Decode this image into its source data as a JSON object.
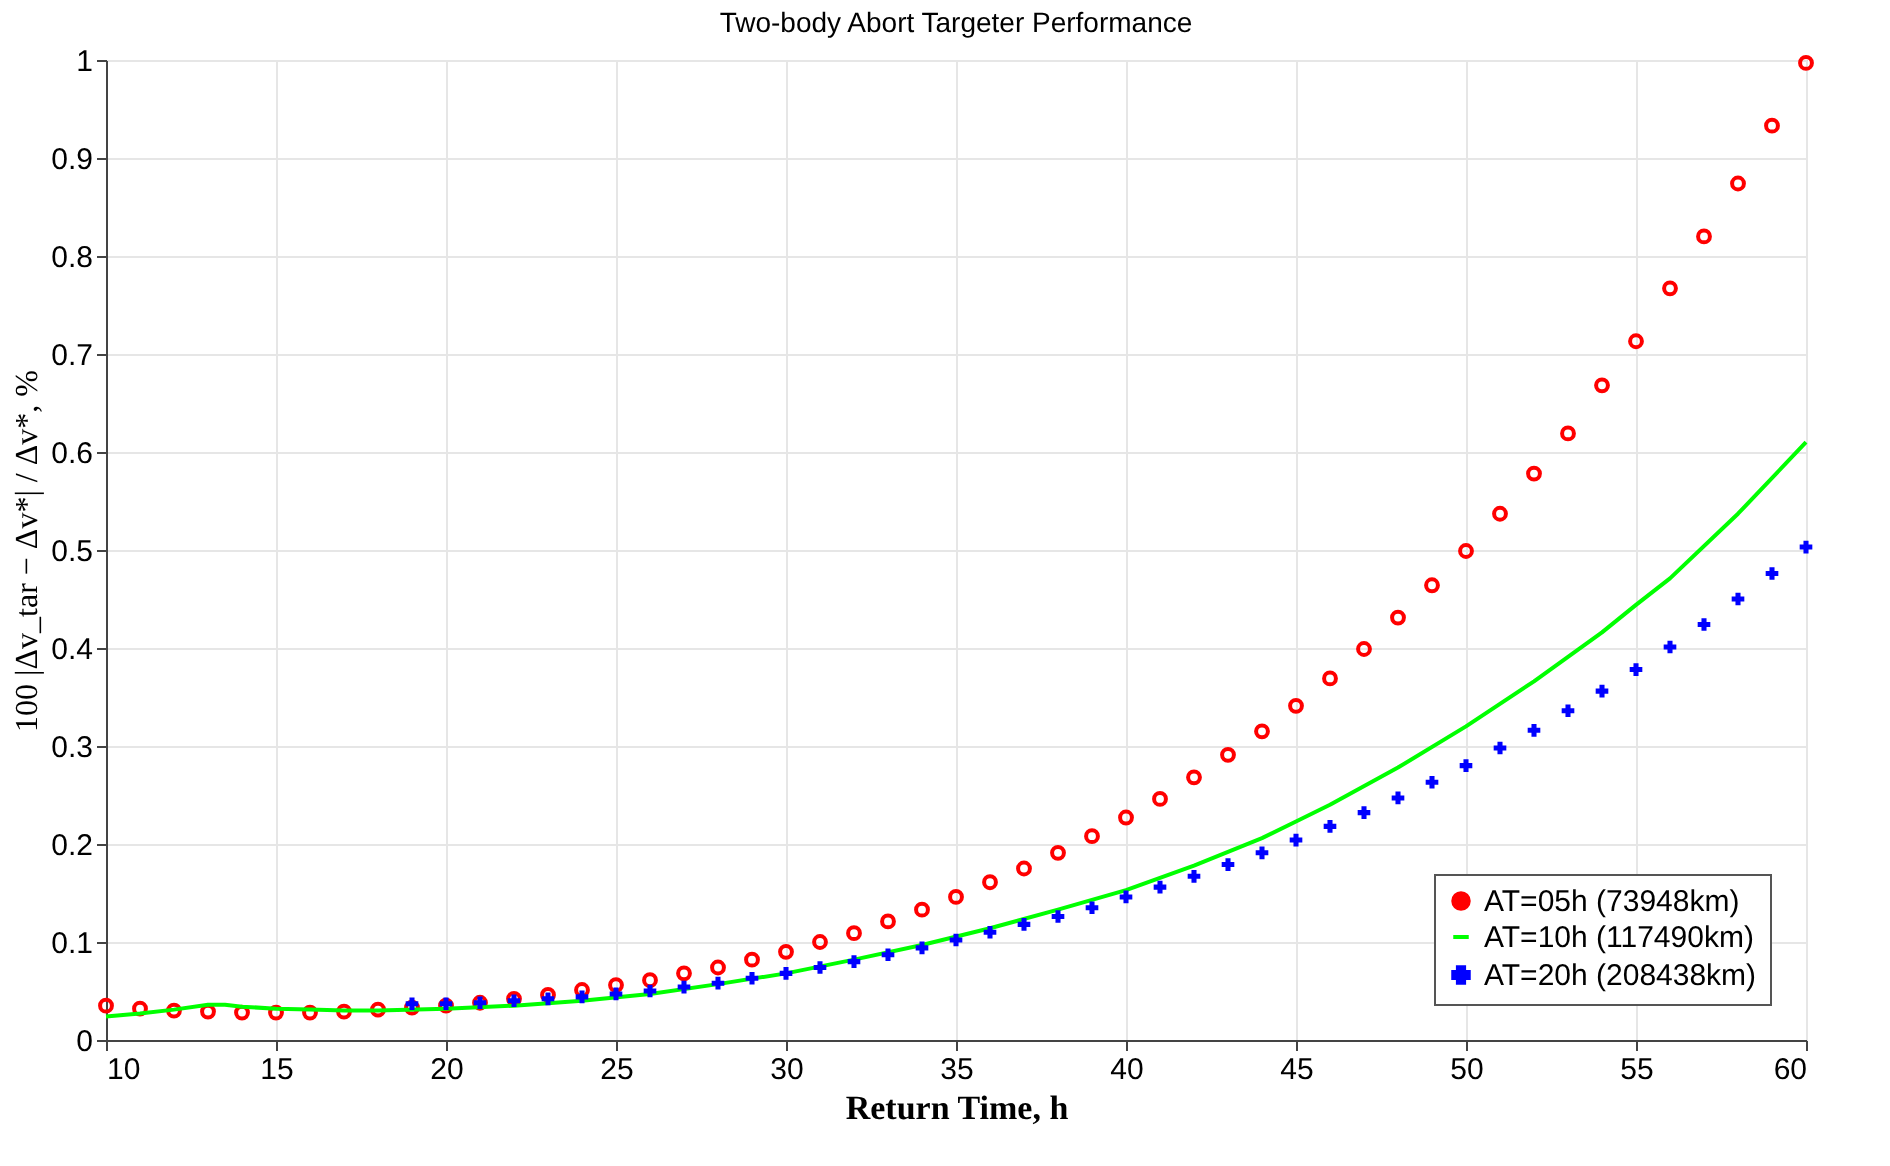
{
  "chart_data": {
    "type": "line",
    "title": "Two-body Abort Targeter Performance",
    "xlabel": "Return Time, h",
    "ylabel": "100 |Δv_tar − Δv*| / Δv*, %",
    "xlim": [
      10,
      60
    ],
    "xticks": [
      10,
      15,
      20,
      25,
      30,
      35,
      40,
      45,
      50,
      55,
      60
    ],
    "ylim": [
      0,
      1
    ],
    "yticks": [
      0,
      0.1,
      0.2,
      0.3,
      0.4,
      0.5,
      0.6,
      0.7,
      0.8,
      0.9,
      1
    ],
    "grid": true,
    "legend": "bottom right",
    "series": [
      {
        "name": "AT=05h (73948km)",
        "type": "scatter",
        "marker": "circle",
        "color": "#ff0000",
        "x": [
          10,
          11,
          12,
          13,
          14,
          15,
          16,
          17,
          18,
          19,
          20,
          21,
          22,
          23,
          24,
          25,
          26,
          27,
          28,
          29,
          30,
          31,
          32,
          33,
          34,
          35,
          36,
          37,
          38,
          39,
          40,
          41,
          42,
          43,
          44,
          45,
          46,
          47,
          48,
          49,
          50,
          51,
          52,
          53,
          54,
          55,
          56,
          57,
          58,
          59,
          60
        ],
        "values": [
          0.035,
          0.032,
          0.03,
          0.029,
          0.028,
          0.028,
          0.028,
          0.029,
          0.031,
          0.033,
          0.035,
          0.038,
          0.042,
          0.046,
          0.051,
          0.056,
          0.061,
          0.068,
          0.074,
          0.082,
          0.09,
          0.1,
          0.109,
          0.121,
          0.133,
          0.146,
          0.161,
          0.175,
          0.191,
          0.208,
          0.227,
          0.246,
          0.268,
          0.291,
          0.315,
          0.341,
          0.369,
          0.399,
          0.431,
          0.464,
          0.499,
          0.537,
          0.578,
          0.619,
          0.668,
          0.713,
          0.767,
          0.82,
          0.874,
          0.933,
          0.997
        ]
      },
      {
        "name": "AT=10h (117490km)",
        "marker": "none",
        "line_style": "solid",
        "color": "#00ff00",
        "x": [
          10,
          11,
          12,
          13,
          13.5,
          14,
          15,
          16,
          17,
          18,
          20,
          22,
          24,
          26,
          28,
          30,
          32,
          34,
          36,
          38,
          40,
          42,
          44,
          45,
          46,
          48,
          50,
          52,
          54,
          55,
          56,
          58,
          60
        ],
        "values": [
          0.024,
          0.027,
          0.031,
          0.036,
          0.036,
          0.034,
          0.032,
          0.031,
          0.03,
          0.03,
          0.032,
          0.035,
          0.04,
          0.047,
          0.057,
          0.068,
          0.082,
          0.097,
          0.114,
          0.133,
          0.153,
          0.178,
          0.206,
          0.223,
          0.24,
          0.278,
          0.32,
          0.366,
          0.416,
          0.444,
          0.471,
          0.537,
          0.61
        ]
      },
      {
        "name": "AT=20h (208438km)",
        "type": "scatter",
        "marker": "cross",
        "color": "#0000ff",
        "x": [
          19,
          20,
          21,
          22,
          23,
          24,
          25,
          26,
          27,
          28,
          29,
          30,
          31,
          32,
          33,
          34,
          35,
          36,
          37,
          38,
          39,
          40,
          41,
          42,
          43,
          44,
          45,
          46,
          47,
          48,
          49,
          50,
          51,
          52,
          53,
          54,
          55,
          56,
          57,
          58,
          59,
          60
        ],
        "values": [
          0.037,
          0.037,
          0.038,
          0.04,
          0.042,
          0.044,
          0.047,
          0.05,
          0.054,
          0.058,
          0.063,
          0.068,
          0.074,
          0.08,
          0.087,
          0.094,
          0.102,
          0.11,
          0.118,
          0.126,
          0.135,
          0.146,
          0.156,
          0.167,
          0.179,
          0.191,
          0.204,
          0.218,
          0.232,
          0.247,
          0.263,
          0.28,
          0.298,
          0.316,
          0.336,
          0.356,
          0.378,
          0.401,
          0.424,
          0.45,
          0.476,
          0.503
        ]
      }
    ]
  }
}
